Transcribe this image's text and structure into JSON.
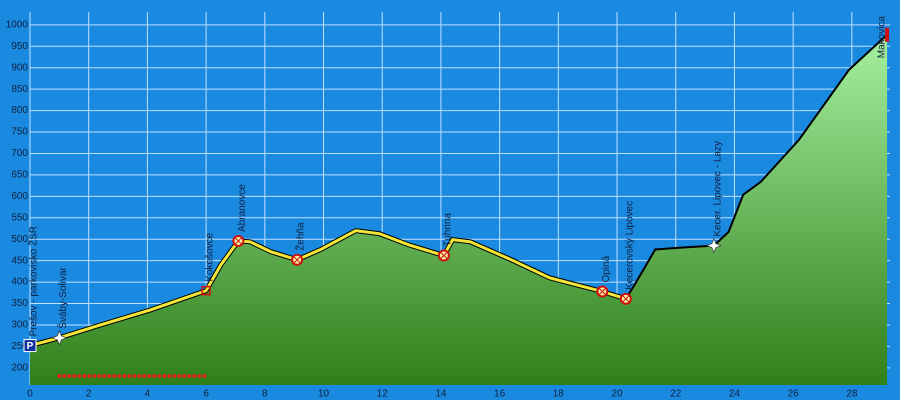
{
  "chart_data": {
    "type": "area",
    "x": [
      0,
      1.0,
      2.4,
      4.1,
      6.0,
      6.5,
      7.1,
      7.5,
      8.2,
      9.1,
      9.9,
      11.1,
      11.9,
      12.9,
      14.1,
      14.4,
      15.0,
      16.4,
      17.7,
      19.5,
      20.3,
      20.6,
      21.3,
      22.1,
      23.3,
      23.8,
      24.3,
      24.9,
      26.2,
      27.9,
      29.2
    ],
    "series": [
      {
        "color": "#3c8f22",
        "values": [
          252,
          270,
          300,
          335,
          380,
          440,
          496,
          494,
          471,
          452,
          476,
          520,
          513,
          487,
          462,
          499,
          494,
          452,
          410,
          378,
          361,
          394,
          476,
          480,
          485,
          517,
          604,
          634,
          732,
          895,
          977
        ]
      }
    ],
    "waypoints": [
      {
        "label": "Prešov - parkovisko ŽSR",
        "x": 0,
        "y": 252,
        "icon": "parking"
      },
      {
        "label": "Šváby-Solivar",
        "x": 1.0,
        "y": 270,
        "icon": "junction"
      },
      {
        "label": "Kokošovce",
        "x": 6.0,
        "y": 380,
        "icon": "village"
      },
      {
        "label": "Abranovce",
        "x": 7.1,
        "y": 496,
        "icon": "poi"
      },
      {
        "label": "Žehňa",
        "x": 9.1,
        "y": 452,
        "icon": "poi"
      },
      {
        "label": "Tuhrina",
        "x": 14.1,
        "y": 462,
        "icon": "poi"
      },
      {
        "label": "Opiná",
        "x": 19.5,
        "y": 378,
        "icon": "poi"
      },
      {
        "label": "Kecerovský Lipovec",
        "x": 20.3,
        "y": 361,
        "icon": "poi"
      },
      {
        "label": "Kecer. Lipovec - Lazy",
        "x": 23.3,
        "y": 485,
        "icon": "junction"
      },
      {
        "label": "Makovica",
        "x": 29.2,
        "y": 977,
        "icon": "summit"
      }
    ],
    "track_highlight_range": [
      0,
      20.3
    ],
    "dotted_range": [
      1.0,
      6.0
    ],
    "xlim": [
      0,
      29.3
    ],
    "ylim": [
      160,
      1030
    ],
    "xticks": [
      0,
      2,
      4,
      6,
      8,
      10,
      12,
      14,
      16,
      18,
      20,
      22,
      24,
      26,
      28
    ],
    "yticks": [
      200,
      250,
      300,
      350,
      400,
      450,
      500,
      550,
      600,
      650,
      700,
      750,
      800,
      850,
      900,
      950,
      1000
    ],
    "grid": true
  }
}
